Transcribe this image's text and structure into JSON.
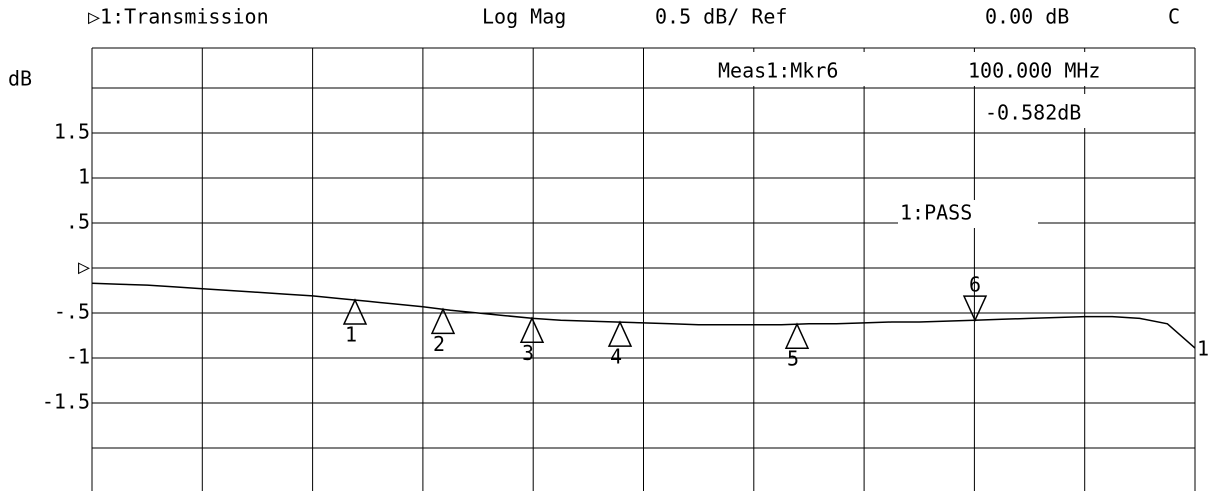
{
  "chart_data": {
    "type": "line",
    "header": {
      "trace": "▷1:Transmission",
      "format": "Log Mag",
      "scale": "0.5 dB/ Ref",
      "ref": "0.00 dB",
      "flag": "C"
    },
    "y_label": "dB",
    "marker_readout": {
      "name": "Meas1:Mkr6",
      "stimulus": "100.000 MHz",
      "response": "-0.582dB"
    },
    "limit_status": "1:PASS",
    "trace_label": "1",
    "markers": [
      "1",
      "2",
      "3",
      "4",
      "5",
      "6"
    ],
    "values": [
      -0.17,
      -0.18,
      -0.19,
      -0.21,
      -0.23,
      -0.25,
      -0.27,
      -0.29,
      -0.31,
      -0.34,
      -0.37,
      -0.4,
      -0.43,
      -0.47,
      -0.5,
      -0.53,
      -0.56,
      -0.58,
      -0.59,
      -0.6,
      -0.61,
      -0.62,
      -0.63,
      -0.63,
      -0.63,
      -0.63,
      -0.62,
      -0.62,
      -0.61,
      -0.6,
      -0.6,
      -0.59,
      -0.58,
      -0.57,
      -0.56,
      -0.55,
      -0.54,
      -0.54,
      -0.56,
      -0.62,
      -0.89
    ],
    "color": "#000000",
    "ylim": [
      -2.5,
      2.5
    ],
    "yticks": [
      1.5,
      1,
      {
        "value": 0.5,
        "label": ".5"
      },
      {
        "value": 0,
        "label": "▷"
      },
      {
        "value": -0.5,
        "label": "-.5"
      },
      -1,
      -1.5
    ],
    "grid": true
  }
}
